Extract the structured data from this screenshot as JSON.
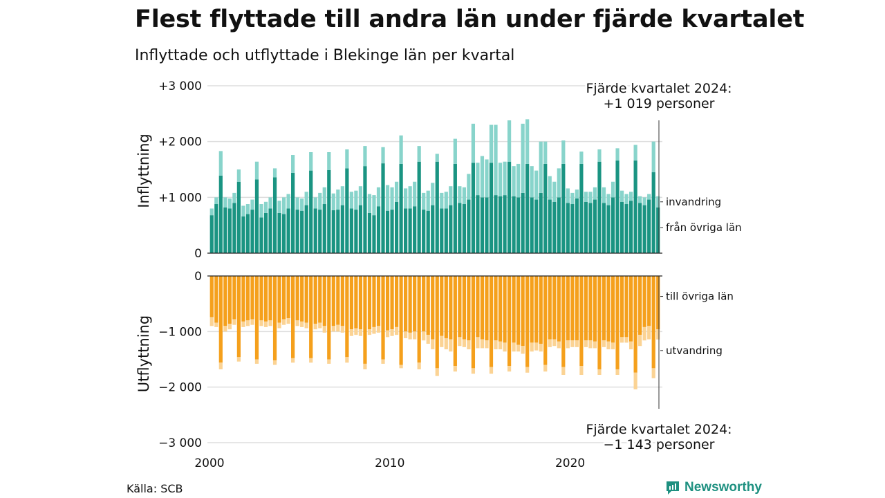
{
  "header": {
    "title": "Flest flyttade till andra län under fjärde kvartalet",
    "subtitle": "Inflyttade och utflyttade i Blekinge län per kvartal"
  },
  "footer": {
    "source": "Källa: SCB",
    "brand": "Newsworthy",
    "brand_icon": "newsworthy-logo-icon"
  },
  "colors": {
    "inflow_domestic": "#1a9482",
    "inflow_immigration": "#88d4cb",
    "outflow_domestic": "#f5a01c",
    "outflow_emigration": "#fbd394",
    "grid": "#dddddd"
  },
  "chart_data": {
    "type": "bar",
    "layout": "diverging-stacked",
    "x_range": [
      2000,
      2025
    ],
    "x_ticks": [
      "2000",
      "2010",
      "2020"
    ],
    "categories": [
      "2000 Q1",
      "2000 Q2",
      "2000 Q3",
      "2000 Q4",
      "2001 Q1",
      "2001 Q2",
      "2001 Q3",
      "2001 Q4",
      "2002 Q1",
      "2002 Q2",
      "2002 Q3",
      "2002 Q4",
      "2003 Q1",
      "2003 Q2",
      "2003 Q3",
      "2003 Q4",
      "2004 Q1",
      "2004 Q2",
      "2004 Q3",
      "2004 Q4",
      "2005 Q1",
      "2005 Q2",
      "2005 Q3",
      "2005 Q4",
      "2006 Q1",
      "2006 Q2",
      "2006 Q3",
      "2006 Q4",
      "2007 Q1",
      "2007 Q2",
      "2007 Q3",
      "2007 Q4",
      "2008 Q1",
      "2008 Q2",
      "2008 Q3",
      "2008 Q4",
      "2009 Q1",
      "2009 Q2",
      "2009 Q3",
      "2009 Q4",
      "2010 Q1",
      "2010 Q2",
      "2010 Q3",
      "2010 Q4",
      "2011 Q1",
      "2011 Q2",
      "2011 Q3",
      "2011 Q4",
      "2012 Q1",
      "2012 Q2",
      "2012 Q3",
      "2012 Q4",
      "2013 Q1",
      "2013 Q2",
      "2013 Q3",
      "2013 Q4",
      "2014 Q1",
      "2014 Q2",
      "2014 Q3",
      "2014 Q4",
      "2015 Q1",
      "2015 Q2",
      "2015 Q3",
      "2015 Q4",
      "2016 Q1",
      "2016 Q2",
      "2016 Q3",
      "2016 Q4",
      "2017 Q1",
      "2017 Q2",
      "2017 Q3",
      "2017 Q4",
      "2018 Q1",
      "2018 Q2",
      "2018 Q3",
      "2018 Q4",
      "2019 Q1",
      "2019 Q2",
      "2019 Q3",
      "2019 Q4",
      "2020 Q1",
      "2020 Q2",
      "2020 Q3",
      "2020 Q4",
      "2021 Q1",
      "2021 Q2",
      "2021 Q3",
      "2021 Q4",
      "2022 Q1",
      "2022 Q2",
      "2022 Q3",
      "2022 Q4",
      "2023 Q1",
      "2023 Q2",
      "2023 Q3",
      "2023 Q4",
      "2024 Q1",
      "2024 Q2",
      "2024 Q3",
      "2024 Q4"
    ],
    "panels": [
      {
        "id": "inflow",
        "axis_label": "Inflyttning",
        "ylim": [
          0,
          3000
        ],
        "yticks": [
          {
            "value": 0,
            "label": "0"
          },
          {
            "value": 1000,
            "label": "+1 000"
          },
          {
            "value": 2000,
            "label": "+2 000"
          },
          {
            "value": 3000,
            "label": "+3 000"
          }
        ],
        "series": [
          {
            "name": "från övriga län",
            "values": [
              680,
              880,
              1390,
              820,
              800,
              900,
              1280,
              660,
              700,
              780,
              1320,
              640,
              720,
              800,
              1360,
              720,
              700,
              800,
              1440,
              780,
              760,
              860,
              1480,
              800,
              780,
              880,
              1490,
              770,
              780,
              860,
              1520,
              800,
              780,
              860,
              1560,
              720,
              680,
              840,
              1610,
              760,
              780,
              920,
              1600,
              800,
              800,
              840,
              1640,
              780,
              760,
              860,
              1640,
              800,
              800,
              860,
              1600,
              900,
              880,
              960,
              1620,
              1040,
              1000,
              1000,
              1620,
              1040,
              1020,
              1040,
              1640,
              1020,
              1000,
              1080,
              1600,
              1000,
              960,
              1080,
              1600,
              960,
              920,
              1000,
              1600,
              900,
              880,
              980,
              1600,
              920,
              900,
              960,
              1640,
              900,
              860,
              1000,
              1660,
              920,
              880,
              940,
              1660,
              900,
              860,
              960,
              1450,
              819
            ]
          },
          {
            "name": "invandring",
            "values": [
              120,
              120,
              440,
              180,
              180,
              180,
              220,
              190,
              180,
              180,
              320,
              240,
              200,
              200,
              160,
              220,
              300,
              260,
              320,
              220,
              220,
              240,
              330,
              200,
              300,
              300,
              320,
              300,
              360,
              340,
              340,
              300,
              340,
              340,
              360,
              340,
              360,
              340,
              290,
              460,
              400,
              360,
              510,
              360,
              400,
              440,
              280,
              300,
              360,
              400,
              140,
              280,
              300,
              340,
              450,
              300,
              300,
              460,
              700,
              580,
              740,
              680,
              680,
              1260,
              600,
              600,
              740,
              540,
              600,
              1240,
              800,
              560,
              520,
              920,
              400,
              420,
              360,
              520,
              420,
              260,
              200,
              160,
              220,
              180,
              200,
              220,
              220,
              280,
              200,
              280,
              220,
              200,
              180,
              160,
              280,
              120,
              140,
              100,
              550,
              200
            ]
          }
        ],
        "annotation": [
          "Fjärde kvartalet 2024:",
          "+1 019 personer"
        ]
      },
      {
        "id": "outflow",
        "axis_label": "Utflyttning",
        "ylim": [
          -3000,
          0
        ],
        "yticks": [
          {
            "value": 0,
            "label": "0"
          },
          {
            "value": -1000,
            "label": "−1 000"
          },
          {
            "value": -2000,
            "label": "−2 000"
          },
          {
            "value": -3000,
            "label": "−3 000"
          }
        ],
        "series": [
          {
            "name": "till övriga län",
            "values": [
              -740,
              -840,
              -1560,
              -900,
              -860,
              -780,
              -1460,
              -820,
              -800,
              -780,
              -1500,
              -800,
              -820,
              -800,
              -1520,
              -840,
              -780,
              -760,
              -1480,
              -800,
              -820,
              -840,
              -1480,
              -860,
              -840,
              -900,
              -1500,
              -900,
              -880,
              -900,
              -1460,
              -960,
              -940,
              -960,
              -1580,
              -960,
              -920,
              -900,
              -1500,
              -980,
              -960,
              -920,
              -1600,
              -1000,
              -1020,
              -1000,
              -1560,
              -1000,
              -1060,
              -1140,
              -1660,
              -1080,
              -1120,
              -1140,
              -1620,
              -1100,
              -1140,
              -1160,
              -1660,
              -1100,
              -1140,
              -1160,
              -1640,
              -1160,
              -1180,
              -1200,
              -1620,
              -1200,
              -1240,
              -1260,
              -1640,
              -1200,
              -1200,
              -1220,
              -1600,
              -1140,
              -1140,
              -1180,
              -1640,
              -1160,
              -1160,
              -1160,
              -1620,
              -1160,
              -1160,
              -1180,
              -1680,
              -1160,
              -1180,
              -1200,
              -1680,
              -1100,
              -1100,
              -1180,
              -1740,
              -1060,
              -920,
              -900,
              -1660,
              -960
            ]
          },
          {
            "name": "utvandring",
            "values": [
              -160,
              -80,
              -120,
              -100,
              -100,
              -100,
              -80,
              -100,
              -100,
              -100,
              -80,
              -100,
              -100,
              -100,
              -80,
              -100,
              -100,
              -100,
              -80,
              -100,
              -100,
              -100,
              -80,
              -100,
              -100,
              -120,
              -80,
              -100,
              -120,
              -120,
              -100,
              -120,
              -120,
              -120,
              -100,
              -100,
              -120,
              -120,
              -80,
              -120,
              -120,
              -140,
              -60,
              -120,
              -120,
              -140,
              -120,
              -160,
              -160,
              -180,
              -140,
              -200,
              -200,
              -220,
              -100,
              -160,
              -140,
              -160,
              -100,
              -200,
              -160,
              -140,
              -120,
              -160,
              -140,
              -160,
              -100,
              -160,
              -120,
              -140,
              -100,
              -160,
              -140,
              -140,
              -120,
              -140,
              -120,
              -120,
              -140,
              -140,
              -120,
              -120,
              -160,
              -120,
              -140,
              -120,
              -100,
              -120,
              -140,
              -120,
              -100,
              -100,
              -100,
              -140,
              -300,
              -200,
              -240,
              -240,
              -180,
              -183
            ]
          }
        ],
        "annotation": [
          "Fjärde kvartalet 2024:",
          "−1 143 personer"
        ]
      }
    ],
    "grid": true,
    "legend_placement": "right"
  }
}
